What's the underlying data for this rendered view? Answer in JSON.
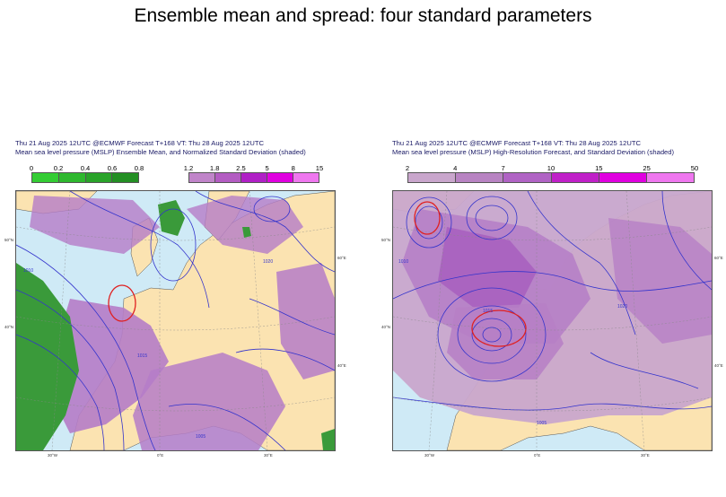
{
  "title": "Ensemble mean and spread: four standard parameters",
  "panels": [
    {
      "header_line1": "Thu 21 Aug 2025 12UTC @ECMWF Forecast T+168 VT: Thu 28 Aug 2025 12UTC",
      "header_line2": "Mean sea level pressure (MSLP) Ensemble Mean, and Normalized Standard Deviation (shaded)",
      "legend_a": {
        "ticks": [
          "0",
          "0.2",
          "0.4",
          "0.6",
          "0.8"
        ],
        "colors": [
          "#33cc33",
          "#2eb82e",
          "#29a329",
          "#238f23"
        ]
      },
      "legend_b": {
        "ticks": [
          "1.2",
          "1.8",
          "2.5",
          "5",
          "8",
          "15"
        ],
        "colors": [
          "#c084c9",
          "#b35cc2",
          "#b020c6",
          "#e000e0",
          "#ef77ef"
        ]
      },
      "lon_labels": [
        "30°W",
        "0°E",
        "30°E"
      ],
      "lat_labels": [
        "50°N",
        "40°N",
        "60°E",
        "40°E"
      ],
      "isobar_labels": [
        "1015",
        "1010",
        "1020",
        "1005"
      ]
    },
    {
      "header_line1": "Thu 21 Aug 2025 12UTC @ECMWF Forecast T+168 VT: Thu 28 Aug 2025 12UTC",
      "header_line2": "Mean sea level pressure (MSLP) High-Resolution Forecast, and Standard Deviation (shaded)",
      "legend": {
        "ticks": [
          "2",
          "4",
          "7",
          "10",
          "15",
          "25",
          "50"
        ],
        "colors": [
          "#c9a6cc",
          "#b883c2",
          "#b063c4",
          "#c020c8",
          "#e000e0",
          "#ef77ef"
        ]
      },
      "lon_labels": [
        "30°W",
        "0°E",
        "30°E"
      ],
      "lat_labels": [
        "50°N",
        "40°N",
        "60°E",
        "40°E"
      ],
      "isobar_labels": [
        "1015",
        "1010",
        "1020",
        "1005"
      ]
    }
  ]
}
